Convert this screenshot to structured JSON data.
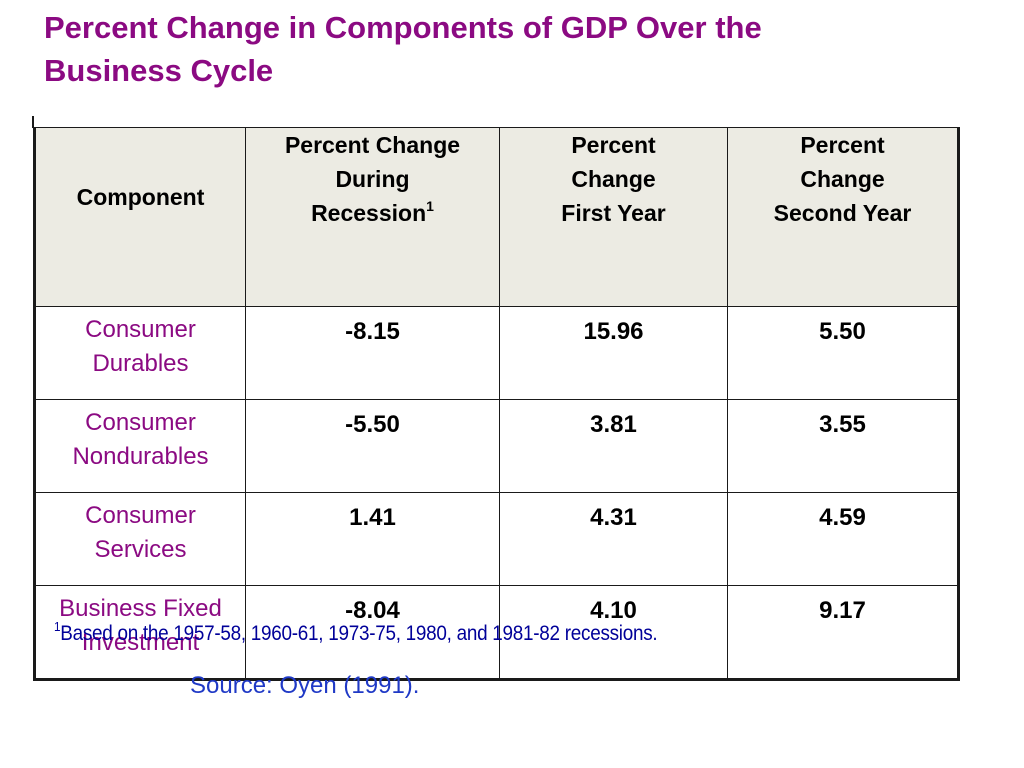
{
  "title": {
    "line1": "Percent Change in Components of GDP Over the",
    "line2": "Business Cycle"
  },
  "table": {
    "headers": {
      "component": "Component",
      "recession": {
        "line1": "Percent Change",
        "line2": "During",
        "line3": "Recession",
        "sup": "1"
      },
      "first_year": {
        "line1": "Percent",
        "line2": "Change",
        "line3": "First Year"
      },
      "second_year": {
        "line1": "Percent",
        "line2": "Change",
        "line3": "Second Year"
      }
    },
    "rows": [
      {
        "component_line1": "Consumer",
        "component_line2": "Durables",
        "recession": "-8.15",
        "first_year": "15.96",
        "second_year": "5.50"
      },
      {
        "component_line1": "Consumer",
        "component_line2": "Nondurables",
        "recession": "-5.50",
        "first_year": "3.81",
        "second_year": "3.55"
      },
      {
        "component_line1": "Consumer",
        "component_line2": "Services",
        "recession": "1.41",
        "first_year": "4.31",
        "second_year": "4.59"
      },
      {
        "component_line1": "Business Fixed",
        "component_line2": "Investment",
        "recession": "-8.04",
        "first_year": "4.10",
        "second_year": "9.17"
      }
    ]
  },
  "footnote": {
    "sup": "1",
    "text": "Based on the 1957-58, 1960-61, 1973-75, 1980, and 1981-82 recessions."
  },
  "source": "Source: Oyen (1991).",
  "colors": {
    "title": "#8b0a82",
    "component_text": "#8b0a82",
    "header_bg": "#ecebe3",
    "footnote": "#000099",
    "source": "#1f39c6"
  }
}
